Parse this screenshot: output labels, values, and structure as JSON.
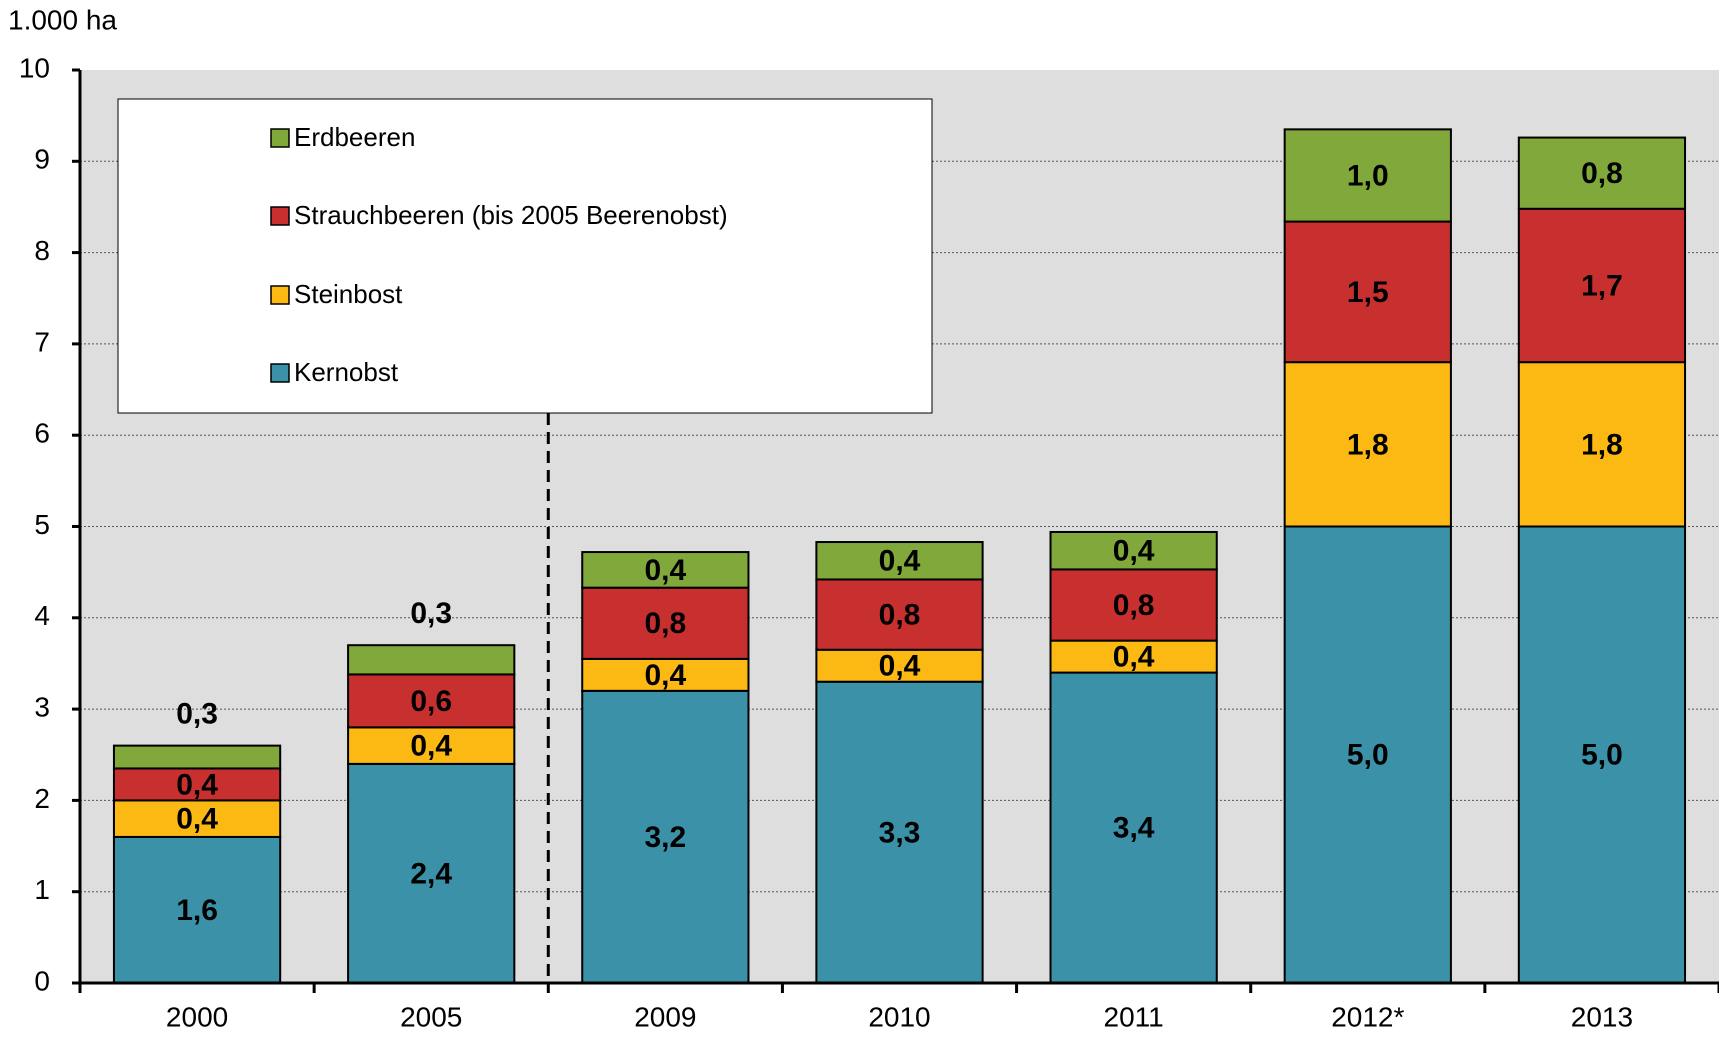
{
  "chart_data": {
    "type": "stacked_bar",
    "y_label": "1.000 ha",
    "categories": [
      "2000",
      "2005",
      "2009",
      "2010",
      "2011",
      "2012*",
      "2013"
    ],
    "series": [
      {
        "name": "Kernobst",
        "color": "#3a91a8",
        "values": [
          1.6,
          2.4,
          3.2,
          3.3,
          3.4,
          5.0,
          5.0
        ],
        "value_labels": [
          "1,6",
          "2,4",
          "3,2",
          "3,3",
          "3,4",
          "5,0",
          "5,0"
        ]
      },
      {
        "name": "Steinbost",
        "color": "#fdb913",
        "values": [
          0.4,
          0.4,
          0.35,
          0.35,
          0.35,
          1.8,
          1.8
        ],
        "value_labels": [
          "0,4",
          "0,4",
          "0,4",
          "0,4",
          "0,4",
          "1,8",
          "1,8"
        ]
      },
      {
        "name": "Strauchbeeren (bis 2005 Beerenobst)",
        "color": "#c8302f",
        "values": [
          0.35,
          0.58,
          0.78,
          0.77,
          0.78,
          1.54,
          1.68
        ],
        "value_labels": [
          "0,4",
          "0,6",
          "0,8",
          "0,8",
          "0,8",
          "1,5",
          "1,7"
        ]
      },
      {
        "name": "Erdbeeren",
        "color": "#80a83a",
        "values": [
          0.25,
          0.32,
          0.39,
          0.41,
          0.41,
          1.01,
          0.78
        ],
        "value_labels": [
          "0,3",
          "0,3",
          "0,4",
          "0,4",
          "0,4",
          "1,0",
          "0,8"
        ]
      }
    ],
    "ylim": [
      0,
      10
    ],
    "yticks": [
      0,
      1,
      2,
      3,
      4,
      5,
      6,
      7,
      8,
      9,
      10
    ],
    "grid": true,
    "legend": "upper left"
  }
}
